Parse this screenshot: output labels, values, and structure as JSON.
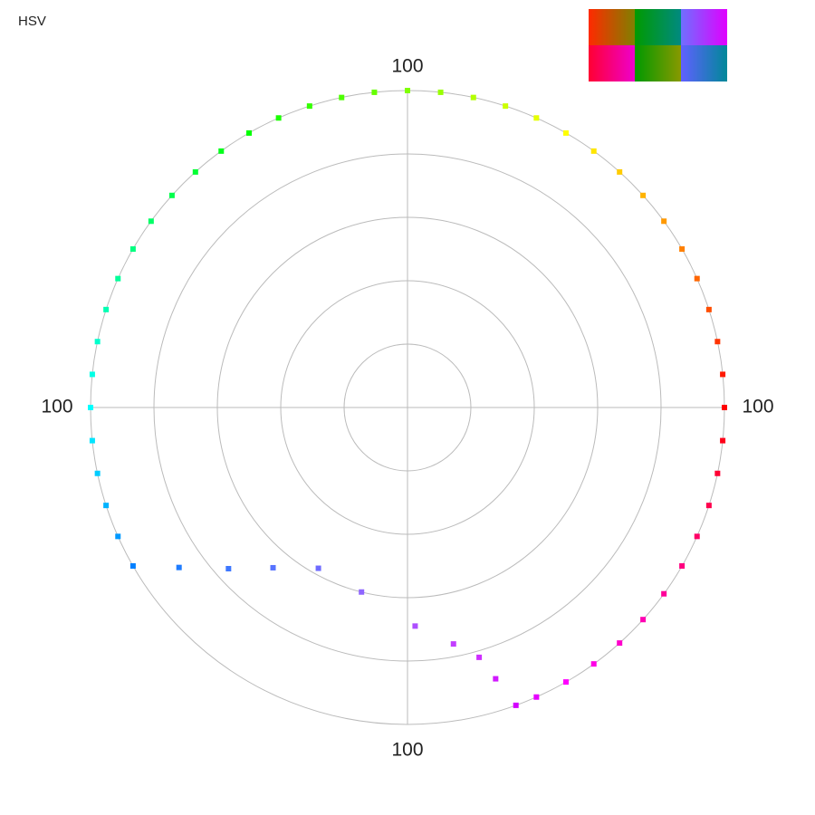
{
  "chart_data": {
    "type": "polar",
    "title": "HSV",
    "rlim": [
      0,
      100
    ],
    "rticks": [
      20,
      40,
      60,
      80,
      100
    ],
    "grid": true,
    "series": [
      {
        "hue": [
          0,
          6,
          12,
          18,
          24,
          30,
          36,
          42,
          48,
          54,
          60,
          66,
          72,
          78,
          84,
          90,
          96,
          102,
          108,
          114,
          120,
          126,
          132,
          138,
          144,
          150,
          156,
          162,
          168,
          174,
          180,
          186,
          192,
          198,
          204,
          210,
          215,
          222,
          230,
          241,
          256,
          272,
          281,
          286,
          288,
          290,
          294,
          300,
          306,
          312,
          318,
          324,
          330,
          336,
          342,
          348,
          354
        ],
        "saturation": [
          100,
          100,
          100,
          100,
          100,
          100,
          100,
          100,
          100,
          100,
          100,
          100,
          100,
          100,
          100,
          100,
          100,
          100,
          100,
          100,
          100,
          100,
          100,
          100,
          100,
          100,
          100,
          100,
          100,
          100,
          100,
          100,
          100,
          100,
          100,
          100,
          88,
          76,
          66,
          58,
          60,
          69,
          76,
          82,
          90,
          100,
          100,
          100,
          100,
          100,
          100,
          100,
          100,
          100,
          100,
          100,
          100
        ]
      }
    ],
    "swatches": [
      {
        "from": "#ff2a00",
        "to": "#808000"
      },
      {
        "from": "#009a00",
        "to": "#008a80"
      },
      {
        "from": "#6f6fff",
        "to": "#e000ff"
      },
      {
        "from": "#ff0033",
        "to": "#ee00cc"
      },
      {
        "from": "#009900",
        "to": "#889900"
      },
      {
        "from": "#6060ff",
        "to": "#008899"
      }
    ]
  }
}
